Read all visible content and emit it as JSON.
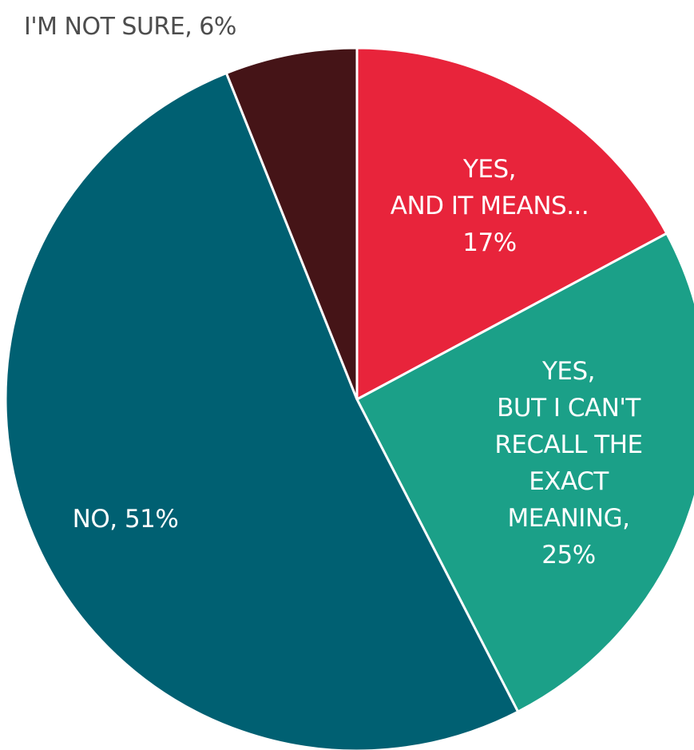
{
  "chart_data": {
    "type": "pie",
    "title": "",
    "slices": [
      {
        "label": "YES, AND IT MEANS...",
        "value": 17,
        "color": "#e8243b",
        "text_color": "#ffffff",
        "label_lines": [
          "YES,",
          "AND IT MEANS...",
          "17%"
        ]
      },
      {
        "label": "YES, BUT I CAN'T RECALL THE EXACT MEANING",
        "value": 25,
        "color": "#1ba088",
        "text_color": "#ffffff",
        "label_lines": [
          "YES,",
          "BUT I CAN'T",
          "RECALL THE",
          "EXACT",
          "MEANING,",
          "25%"
        ]
      },
      {
        "label": "NO",
        "value": 51,
        "color": "#006072",
        "text_color": "#ffffff",
        "label_lines": [
          "NO, 51%"
        ]
      },
      {
        "label": "I'M NOT SURE",
        "value": 6,
        "color": "#451417",
        "text_color": "#4d4d4d",
        "label_lines": [
          "I'M NOT SURE, 6%"
        ],
        "label_position": "outside-top-left"
      }
    ],
    "start_angle": "12 o'clock",
    "direction": "clockwise",
    "legend": "none"
  }
}
